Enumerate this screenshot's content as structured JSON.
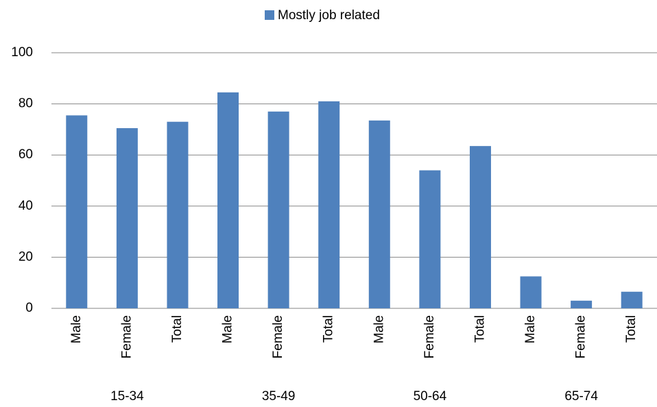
{
  "chart_data": {
    "type": "bar",
    "legend": "top",
    "series": [
      {
        "name": "Mostly job related",
        "color": "#4f81bd",
        "values": [
          75.5,
          70.5,
          73,
          84.5,
          77,
          81,
          73.5,
          54,
          63.5,
          12.5,
          3,
          6.5
        ]
      }
    ],
    "categories": [
      "Male",
      "Female",
      "Total",
      "Male",
      "Female",
      "Total",
      "Male",
      "Female",
      "Total",
      "Male",
      "Female",
      "Total"
    ],
    "groups": [
      "15-34",
      "35-49",
      "50-64",
      "65-74"
    ],
    "ylim": [
      0,
      100
    ],
    "yticks": [
      0,
      20,
      40,
      60,
      80,
      100
    ],
    "grid": true
  }
}
